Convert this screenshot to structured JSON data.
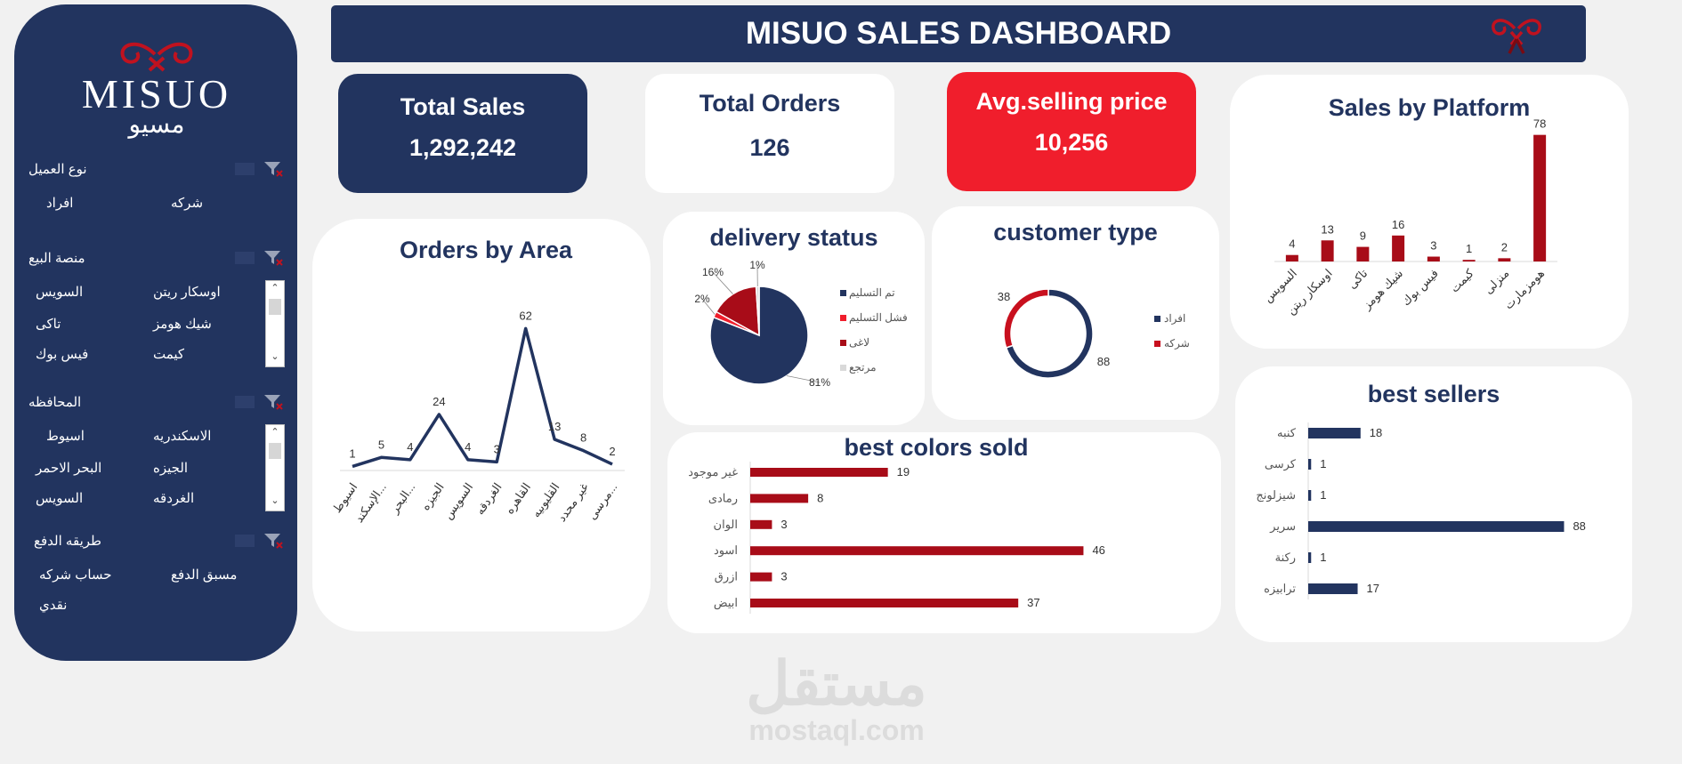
{
  "title": "MISUO SALES DASHBOARD",
  "brand": {
    "logo_latin": "MISUO",
    "logo_arabic": "مسيو"
  },
  "colors": {
    "navy": "#22345f",
    "red": "#a80c18",
    "bright_red": "#f01e2c",
    "grey": "#d9d9d9"
  },
  "sidebar": {
    "slicers": [
      {
        "title": "نوع العميل",
        "items": [
          "افراد",
          "شركه"
        ]
      },
      {
        "title": "منصة البيع",
        "items": [
          "السويس",
          "اوسكار ريتن",
          "تاكى",
          "شيك هومز",
          "فيس بوك",
          "كيمت"
        ]
      },
      {
        "title": "المحافظه",
        "items": [
          "اسيوط",
          "الاسكندريه",
          "البحر الاحمر",
          "الجيزه",
          "السويس",
          "الغردقه"
        ]
      },
      {
        "title": "طريقه الدفع",
        "items": [
          "حساب شركه",
          "مسبق الدفع",
          "نقدي"
        ]
      }
    ]
  },
  "kpis": {
    "total_sales": {
      "label": "Total Sales",
      "value": "1,292,242"
    },
    "total_orders": {
      "label": "Total Orders",
      "value": "126"
    },
    "avg_price": {
      "label": "Avg.selling price",
      "value": "10,256"
    }
  },
  "watermark": {
    "arabic": "مستقل",
    "latin": "mostaql.com"
  },
  "chart_data": [
    {
      "id": "orders_by_area",
      "type": "line",
      "title": "Orders by Area",
      "categories": [
        "اسيوط",
        "الإسكند...",
        "البحر...",
        "الجيزه",
        "السويس",
        "الغردقه",
        "القاهره",
        "القليوبيه",
        "غير محدد",
        "مرسى..."
      ],
      "values": [
        1,
        5,
        4,
        24,
        4,
        3,
        62,
        13,
        8,
        2
      ],
      "ylim": [
        0,
        70
      ],
      "grid": false
    },
    {
      "id": "delivery_status",
      "type": "pie",
      "title": "delivery status",
      "labels": [
        "تم التسليم",
        "فشل التسليم",
        "لاغى",
        "مرتجع"
      ],
      "values": [
        81,
        2,
        16,
        1
      ],
      "value_labels": [
        "81%",
        "2%",
        "16%",
        "1%"
      ],
      "colors": [
        "#22345f",
        "#f01e2c",
        "#a80c18",
        "#d9d9d9"
      ],
      "legend": "right"
    },
    {
      "id": "customer_type",
      "type": "pie",
      "title": "customer type",
      "labels": [
        "افراد",
        "شركه"
      ],
      "values": [
        88,
        38
      ],
      "colors": [
        "#22345f",
        "#c8101e"
      ],
      "legend": "right",
      "donut": true
    },
    {
      "id": "sales_by_platform",
      "type": "bar",
      "title": "Sales by Platform",
      "categories": [
        "السويس",
        "اوسكار ريتن",
        "تاكى",
        "شيك هومز",
        "فيس بوك",
        "كيمت",
        "منزلى",
        "هومزمارت"
      ],
      "values": [
        4,
        13,
        9,
        16,
        3,
        1,
        2,
        78
      ],
      "ylim": [
        0,
        80
      ],
      "color": "#a80c18"
    },
    {
      "id": "best_colors_sold",
      "type": "bar",
      "orientation": "horizontal",
      "title": "best colors sold",
      "categories": [
        "غير موجود",
        "رمادى",
        "الوان",
        "اسود",
        "ازرق",
        "ابيض"
      ],
      "values": [
        19,
        8,
        3,
        46,
        3,
        37
      ],
      "xlim": [
        0,
        50
      ],
      "color": "#a80c18"
    },
    {
      "id": "best_sellers",
      "type": "bar",
      "orientation": "horizontal",
      "title": "best sellers",
      "categories": [
        "كنبه",
        "كرسى",
        "شيزلونج",
        "سرير",
        "ركنة",
        "ترابيزه"
      ],
      "values": [
        18,
        1,
        1,
        88,
        1,
        17
      ],
      "xlim": [
        0,
        90
      ],
      "color": "#22345f"
    }
  ]
}
